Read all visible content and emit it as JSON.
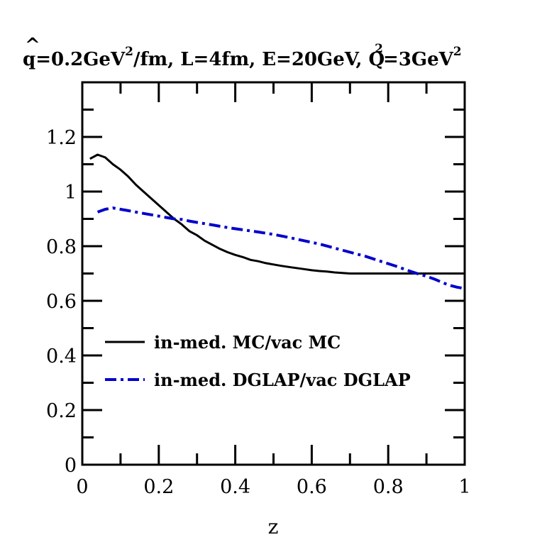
{
  "chart_data": {
    "type": "line",
    "title": {
      "qhat_symbol": "q",
      "hat_mark": "^",
      "part1": "=0.2GeV",
      "sup1": "2",
      "part2": "/fm, L=4fm, E=20GeV, Q",
      "sup2": "2",
      "part3": "=3GeV",
      "sup3": "2"
    },
    "xlabel": "z",
    "ylabel": "",
    "xlim": [
      0,
      1
    ],
    "ylim": [
      0,
      1.4
    ],
    "x_ticks": [
      {
        "value": 0,
        "label": "0"
      },
      {
        "value": 0.2,
        "label": "0.2"
      },
      {
        "value": 0.4,
        "label": "0.4"
      },
      {
        "value": 0.6,
        "label": "0.6"
      },
      {
        "value": 0.8,
        "label": "0.8"
      },
      {
        "value": 1.0,
        "label": "1"
      }
    ],
    "y_ticks": [
      {
        "value": 0,
        "label": "0"
      },
      {
        "value": 0.2,
        "label": "0.2"
      },
      {
        "value": 0.4,
        "label": "0.4"
      },
      {
        "value": 0.6,
        "label": "0.6"
      },
      {
        "value": 0.8,
        "label": "0.8"
      },
      {
        "value": 1.0,
        "label": "1"
      },
      {
        "value": 1.2,
        "label": "1.2"
      }
    ],
    "x_minor_step": 0.1,
    "y_minor_step": 0.1,
    "legend_position": "lower-left",
    "series": [
      {
        "name": "in-med. MC/vac MC",
        "color": "#000000",
        "style": "solid",
        "x": [
          0.02,
          0.04,
          0.06,
          0.08,
          0.1,
          0.12,
          0.14,
          0.16,
          0.18,
          0.2,
          0.22,
          0.24,
          0.26,
          0.28,
          0.3,
          0.32,
          0.34,
          0.36,
          0.38,
          0.4,
          0.42,
          0.44,
          0.46,
          0.48,
          0.5,
          0.52,
          0.54,
          0.56,
          0.58,
          0.6,
          0.62,
          0.64,
          0.66,
          0.68,
          0.7,
          0.75,
          0.8,
          0.85,
          0.9,
          0.95,
          1.0
        ],
        "y": [
          1.12,
          1.135,
          1.125,
          1.1,
          1.08,
          1.055,
          1.025,
          1.0,
          0.975,
          0.95,
          0.925,
          0.9,
          0.88,
          0.855,
          0.84,
          0.82,
          0.805,
          0.79,
          0.778,
          0.768,
          0.76,
          0.75,
          0.745,
          0.738,
          0.733,
          0.728,
          0.724,
          0.72,
          0.716,
          0.712,
          0.709,
          0.707,
          0.704,
          0.702,
          0.7,
          0.7,
          0.7,
          0.7,
          0.7,
          0.7,
          0.7
        ]
      },
      {
        "name": "in-med. DGLAP/vac DGLAP",
        "color": "#0000cc",
        "style": "dash-dot",
        "x": [
          0.04,
          0.06,
          0.08,
          0.1,
          0.12,
          0.14,
          0.16,
          0.18,
          0.2,
          0.22,
          0.24,
          0.26,
          0.28,
          0.3,
          0.34,
          0.38,
          0.42,
          0.46,
          0.5,
          0.54,
          0.58,
          0.62,
          0.66,
          0.7,
          0.74,
          0.78,
          0.82,
          0.86,
          0.88,
          0.9,
          0.92,
          0.94,
          0.96,
          0.98,
          1.0
        ],
        "y": [
          0.925,
          0.935,
          0.94,
          0.935,
          0.93,
          0.925,
          0.92,
          0.915,
          0.91,
          0.905,
          0.9,
          0.898,
          0.892,
          0.887,
          0.878,
          0.868,
          0.86,
          0.852,
          0.843,
          0.832,
          0.82,
          0.808,
          0.793,
          0.778,
          0.763,
          0.745,
          0.727,
          0.707,
          0.698,
          0.69,
          0.68,
          0.668,
          0.657,
          0.65,
          0.645
        ]
      }
    ]
  }
}
